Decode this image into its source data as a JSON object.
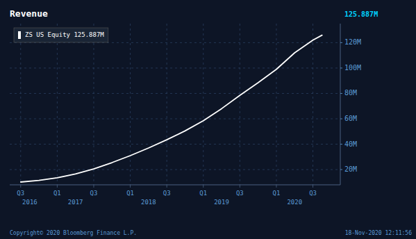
{
  "chart_data": {
    "type": "line",
    "title": "Revenue",
    "x": [
      0.0,
      0.5,
      1.0,
      1.5,
      2.0,
      2.5,
      3.0,
      3.5,
      4.0,
      4.5,
      5.0,
      5.5,
      6.0,
      6.5,
      7.0,
      7.5,
      8.0,
      8.25
    ],
    "series": [
      {
        "name": "ZS US Equity  125.887M",
        "color": "#ffffff",
        "values": [
          10.2,
          11.5,
          13.5,
          16.5,
          20.5,
          25.5,
          31.0,
          37.0,
          43.5,
          50.5,
          58.5,
          68.0,
          78.5,
          88.5,
          99.0,
          112.0,
          122.0,
          125.887
        ]
      }
    ],
    "xlim": [
      -0.3,
      8.75
    ],
    "xticks": [
      {
        "value": 0,
        "label": "Q3"
      },
      {
        "value": 1,
        "label": "Q1"
      },
      {
        "value": 2,
        "label": "Q3"
      },
      {
        "value": 3,
        "label": "Q1"
      },
      {
        "value": 4,
        "label": "Q3"
      },
      {
        "value": 5,
        "label": "Q1"
      },
      {
        "value": 6,
        "label": "Q3"
      },
      {
        "value": 7,
        "label": "Q1"
      },
      {
        "value": 8,
        "label": "Q3"
      }
    ],
    "ylim": [
      8,
      135
    ],
    "yticks": [
      {
        "value": 20,
        "label": "20M"
      },
      {
        "value": 40,
        "label": "40M"
      },
      {
        "value": 60,
        "label": "60M"
      },
      {
        "value": 80,
        "label": "80M"
      },
      {
        "value": 100,
        "label": "100M"
      },
      {
        "value": 120,
        "label": "120M"
      }
    ],
    "annotations": [
      {
        "text": "2016",
        "x": 0.25
      },
      {
        "text": "2017",
        "x": 1.5
      },
      {
        "text": "2018",
        "x": 3.5
      },
      {
        "text": "2019",
        "x": 5.5
      },
      {
        "text": "2020",
        "x": 7.5
      },
      {
        "text": "125.887M",
        "color": "#00d4ff"
      },
      {
        "text": "Copyright© 2020 Bloomberg Finance L.P."
      },
      {
        "text": "18-Nov-2020 12:11:56"
      }
    ],
    "grid": true,
    "legend": "upper left"
  }
}
